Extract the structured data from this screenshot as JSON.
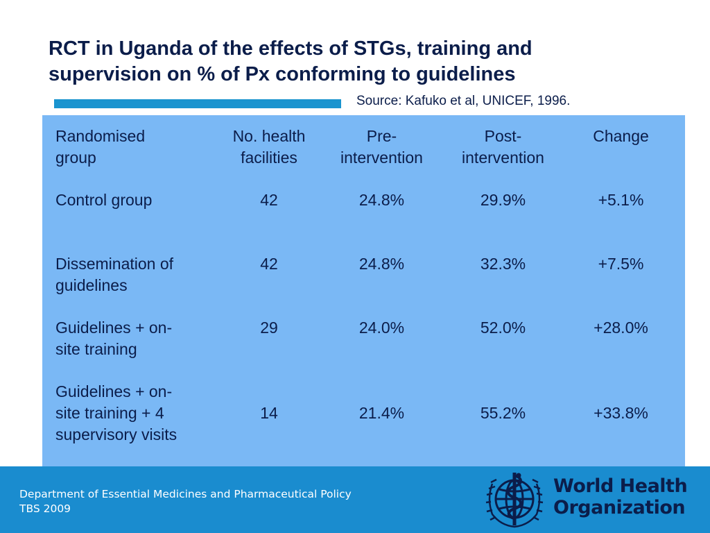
{
  "title": {
    "line1": "RCT in Uganda of the effects of STGs, training and",
    "line2": "supervision on % of Px conforming to guidelines"
  },
  "source": "Source: Kafuko et al, UNICEF, 1996.",
  "table": {
    "headers": {
      "group": [
        "Randomised",
        "group"
      ],
      "facilities": [
        "No. health",
        "facilities"
      ],
      "pre": [
        "Pre-",
        "intervention"
      ],
      "post": [
        "Post-",
        "intervention"
      ],
      "change": [
        "Change"
      ]
    },
    "rows": [
      {
        "group": [
          "Control group"
        ],
        "facilities": "42",
        "pre": "24.8%",
        "post": "29.9%",
        "change": "+5.1%"
      },
      {
        "group": [
          "Dissemination of",
          "guidelines"
        ],
        "facilities": "42",
        "pre": "24.8%",
        "post": "32.3%",
        "change": "+7.5%"
      },
      {
        "group": [
          "Guidelines + on-",
          "site training"
        ],
        "facilities": "29",
        "pre": "24.0%",
        "post": "52.0%",
        "change": "+28.0%"
      },
      {
        "group": [
          "Guidelines + on-",
          "site training + 4",
          "supervisory visits"
        ],
        "facilities": "14",
        "pre": "21.4%",
        "post": "55.2%",
        "change": "+33.8%"
      }
    ]
  },
  "footer": {
    "department": "Department of Essential Medicines and Pharmaceutical Policy",
    "course": "TBS 2009"
  },
  "logo": {
    "line1": "World Health",
    "line2": "Organization"
  },
  "colors": {
    "title": "#0b1d4a",
    "accent_bar": "#1a94cf",
    "panel": "#7ab8f5",
    "footer": "#1a8ccf"
  }
}
